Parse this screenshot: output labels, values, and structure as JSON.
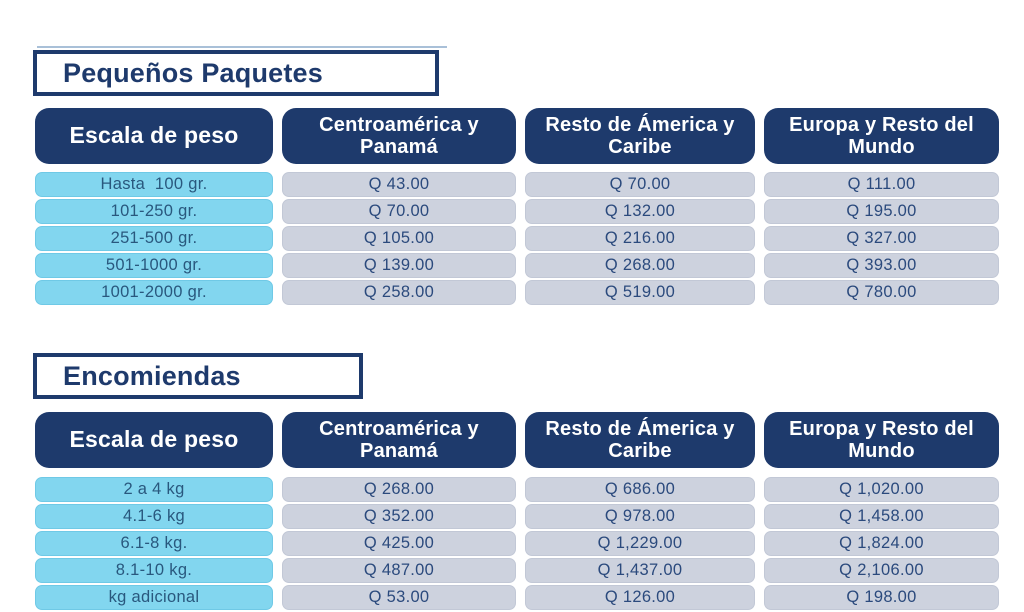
{
  "colors": {
    "navy": "#1e3a6c",
    "light_blue_cell": "#82d6ef",
    "gray_cell": "#cdd2de",
    "weight_text": "#29587e",
    "price_text": "#2b4a7d",
    "accent_line": "#a9c0d8",
    "header_text": "#ffffff"
  },
  "tables": [
    {
      "title": "Pequeños Paquetes",
      "headers": [
        "Escala de peso",
        "Centroamérica y Panamá",
        "Resto de Ámerica y Caribe",
        "Europa y Resto del Mundo"
      ],
      "rows": [
        [
          "Hasta  100 gr.",
          "Q 43.00",
          "Q 70.00",
          "Q 111.00"
        ],
        [
          "101-250 gr.",
          "Q 70.00",
          "Q 132.00",
          "Q 195.00"
        ],
        [
          "251-500 gr.",
          "Q 105.00",
          "Q 216.00",
          "Q 327.00"
        ],
        [
          "501-1000 gr.",
          "Q 139.00",
          "Q 268.00",
          "Q 393.00"
        ],
        [
          "1001-2000 gr.",
          "Q 258.00",
          "Q 519.00",
          "Q 780.00"
        ]
      ]
    },
    {
      "title": "Encomiendas",
      "headers": [
        "Escala de peso",
        "Centroamérica y Panamá",
        "Resto de Ámerica y Caribe",
        "Europa y Resto del Mundo"
      ],
      "rows": [
        [
          "2 a 4 kg",
          "Q 268.00",
          "Q 686.00",
          "Q 1,020.00"
        ],
        [
          "4.1-6 kg",
          "Q 352.00",
          "Q 978.00",
          "Q 1,458.00"
        ],
        [
          "6.1-8 kg.",
          "Q 425.00",
          "Q 1,229.00",
          "Q 1,824.00"
        ],
        [
          "8.1-10 kg.",
          "Q 487.00",
          "Q 1,437.00",
          "Q 2,106.00"
        ],
        [
          "kg adicional",
          "Q 53.00",
          "Q 126.00",
          "Q 198.00"
        ]
      ]
    }
  ]
}
